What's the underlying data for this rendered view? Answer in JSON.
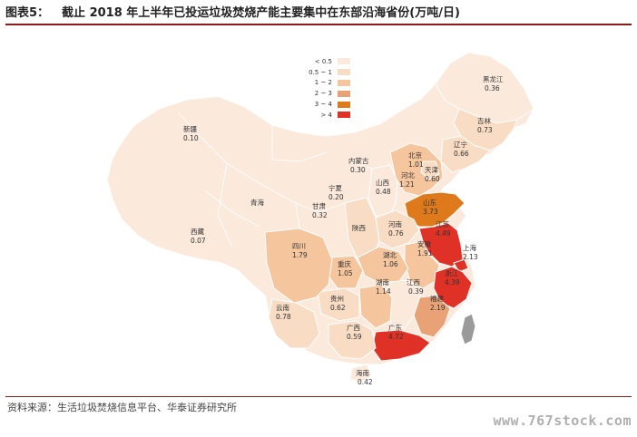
{
  "header": {
    "figure_number": "图表5：",
    "title": "截止 2018 年上半年已投运垃圾焚烧产能主要集中在东部沿海省份(万吨/日)"
  },
  "legend": {
    "items": [
      {
        "label": "< 0.5",
        "color": "#fbe9dc"
      },
      {
        "label": "0.5 ~ 1",
        "color": "#f8dcc3"
      },
      {
        "label": "1 ~ 2",
        "color": "#f5c59d"
      },
      {
        "label": "2 ~ 3",
        "color": "#e9a275"
      },
      {
        "label": "3 ~ 4",
        "color": "#df7a1c"
      },
      {
        "label": "> 4",
        "color": "#e03127"
      }
    ]
  },
  "provinces": [
    {
      "name": "黑龙江",
      "value": "0.36"
    },
    {
      "name": "吉林",
      "value": "0.73"
    },
    {
      "name": "辽宁",
      "value": "0.66"
    },
    {
      "name": "新疆",
      "value": "0.10"
    },
    {
      "name": "内蒙古",
      "value": "0.30"
    },
    {
      "name": "北京",
      "value": "1.01"
    },
    {
      "name": "天津",
      "value": "0.60"
    },
    {
      "name": "河北",
      "value": "1.21"
    },
    {
      "name": "宁夏",
      "value": "0.20"
    },
    {
      "name": "山西",
      "value": "0.48"
    },
    {
      "name": "山东",
      "value": "3.73"
    },
    {
      "name": "青海",
      "value": ""
    },
    {
      "name": "甘肃",
      "value": "0.32"
    },
    {
      "name": "西藏",
      "value": "0.07"
    },
    {
      "name": "陕西",
      "value": ""
    },
    {
      "name": "河南",
      "value": "0.76"
    },
    {
      "name": "江苏",
      "value": "4.49"
    },
    {
      "name": "上海",
      "value": "2.13"
    },
    {
      "name": "安徽",
      "value": "1.91"
    },
    {
      "name": "四川",
      "value": "1.79"
    },
    {
      "name": "湖北",
      "value": "1.06"
    },
    {
      "name": "重庆",
      "value": "1.05"
    },
    {
      "name": "浙江",
      "value": "4.39"
    },
    {
      "name": "湖南",
      "value": "1.14"
    },
    {
      "name": "江西",
      "value": "0.39"
    },
    {
      "name": "贵州",
      "value": "0.62"
    },
    {
      "name": "福建",
      "value": "2.19"
    },
    {
      "name": "云南",
      "value": "0.78"
    },
    {
      "name": "广西",
      "value": "0.59"
    },
    {
      "name": "广东",
      "value": "4.72"
    },
    {
      "name": "海南",
      "value": "0.42"
    }
  ],
  "footer": {
    "source": "资料来源：生活垃圾焚烧信息平台、华泰证券研究所",
    "watermark": "www.767stock.com"
  }
}
